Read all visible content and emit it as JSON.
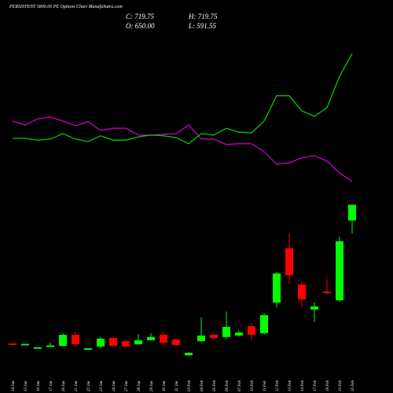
{
  "chart_data": {
    "type": "candlestick",
    "title": "PERSISTENT 5800.00 PE Options Chart MunafaSutra.com",
    "info": [
      "C: 719.75",
      "H: 719.75",
      "O: 650.00",
      "L: 591.55"
    ],
    "categories": [
      "14 Jan",
      "15 Jan",
      "16 Jan",
      "17 Jan",
      "20 Jan",
      "21 Jan",
      "22 Jan",
      "23 Jan",
      "24 Jan",
      "27 Jan",
      "28 Jan",
      "29 Jan",
      "30 Jan",
      "31 Jan",
      "03 Feb",
      "04 Feb",
      "05 Feb",
      "06 Feb",
      "07 Feb",
      "10 Feb",
      "11 Feb",
      "12 Feb",
      "13 Feb",
      "14 Feb",
      "17 Feb",
      "18 Feb",
      "19 Feb",
      "20 Feb"
    ],
    "open": [
      105,
      100,
      84,
      91,
      94,
      143,
      80,
      91,
      129,
      115,
      101,
      119,
      143,
      122,
      52,
      115,
      143,
      133,
      140,
      181,
      150,
      286,
      527,
      366,
      255,
      335,
      296,
      650
    ],
    "high": [
      105,
      103,
      88,
      108,
      150,
      157,
      84,
      133,
      136,
      122,
      146,
      150,
      157,
      126,
      66,
      220,
      150,
      247,
      164,
      195,
      240,
      422,
      593,
      380,
      286,
      391,
      579,
      719.75
    ],
    "low": [
      100,
      100,
      84,
      90,
      90,
      94,
      80,
      84,
      90,
      84,
      98,
      119,
      87,
      91,
      49,
      112,
      119,
      126,
      136,
      119,
      143,
      265,
      370,
      265,
      199,
      321,
      290,
      591.55
    ],
    "close": [
      101,
      103,
      88,
      96,
      143,
      101,
      84,
      126,
      94,
      91,
      119,
      133,
      108,
      98,
      63,
      140,
      129,
      178,
      153,
      143,
      230,
      415,
      408,
      300,
      269,
      328,
      558,
      719.75
    ],
    "up_color": "#00ff00",
    "down_color": "#ff0000",
    "ylim": [
      0,
      1600
    ],
    "series": [
      {
        "color": "#cc00cc",
        "axis": "y2",
        "values": [
          68.2,
          67.1,
          68.8,
          69.3,
          68.2,
          66.9,
          68.0,
          65.6,
          66.2,
          66.2,
          64.3,
          64.3,
          64.5,
          64.7,
          67.1,
          63.2,
          63.2,
          61.7,
          61.9,
          61.9,
          59.7,
          56.2,
          56.6,
          58.0,
          58.6,
          57.1,
          53.8,
          51.4
        ]
      },
      {
        "color": "#00cc00",
        "axis": "y2",
        "values": [
          63.4,
          63.4,
          62.9,
          63.2,
          64.7,
          63.2,
          62.5,
          64.1,
          62.9,
          62.9,
          63.8,
          64.3,
          64.1,
          63.6,
          61.9,
          64.7,
          64.3,
          66.2,
          65.1,
          64.9,
          68.2,
          75.2,
          75.2,
          71.0,
          69.5,
          71.9,
          80.6,
          86.9
        ]
      }
    ],
    "y2lim": [
      0,
      100
    ]
  }
}
